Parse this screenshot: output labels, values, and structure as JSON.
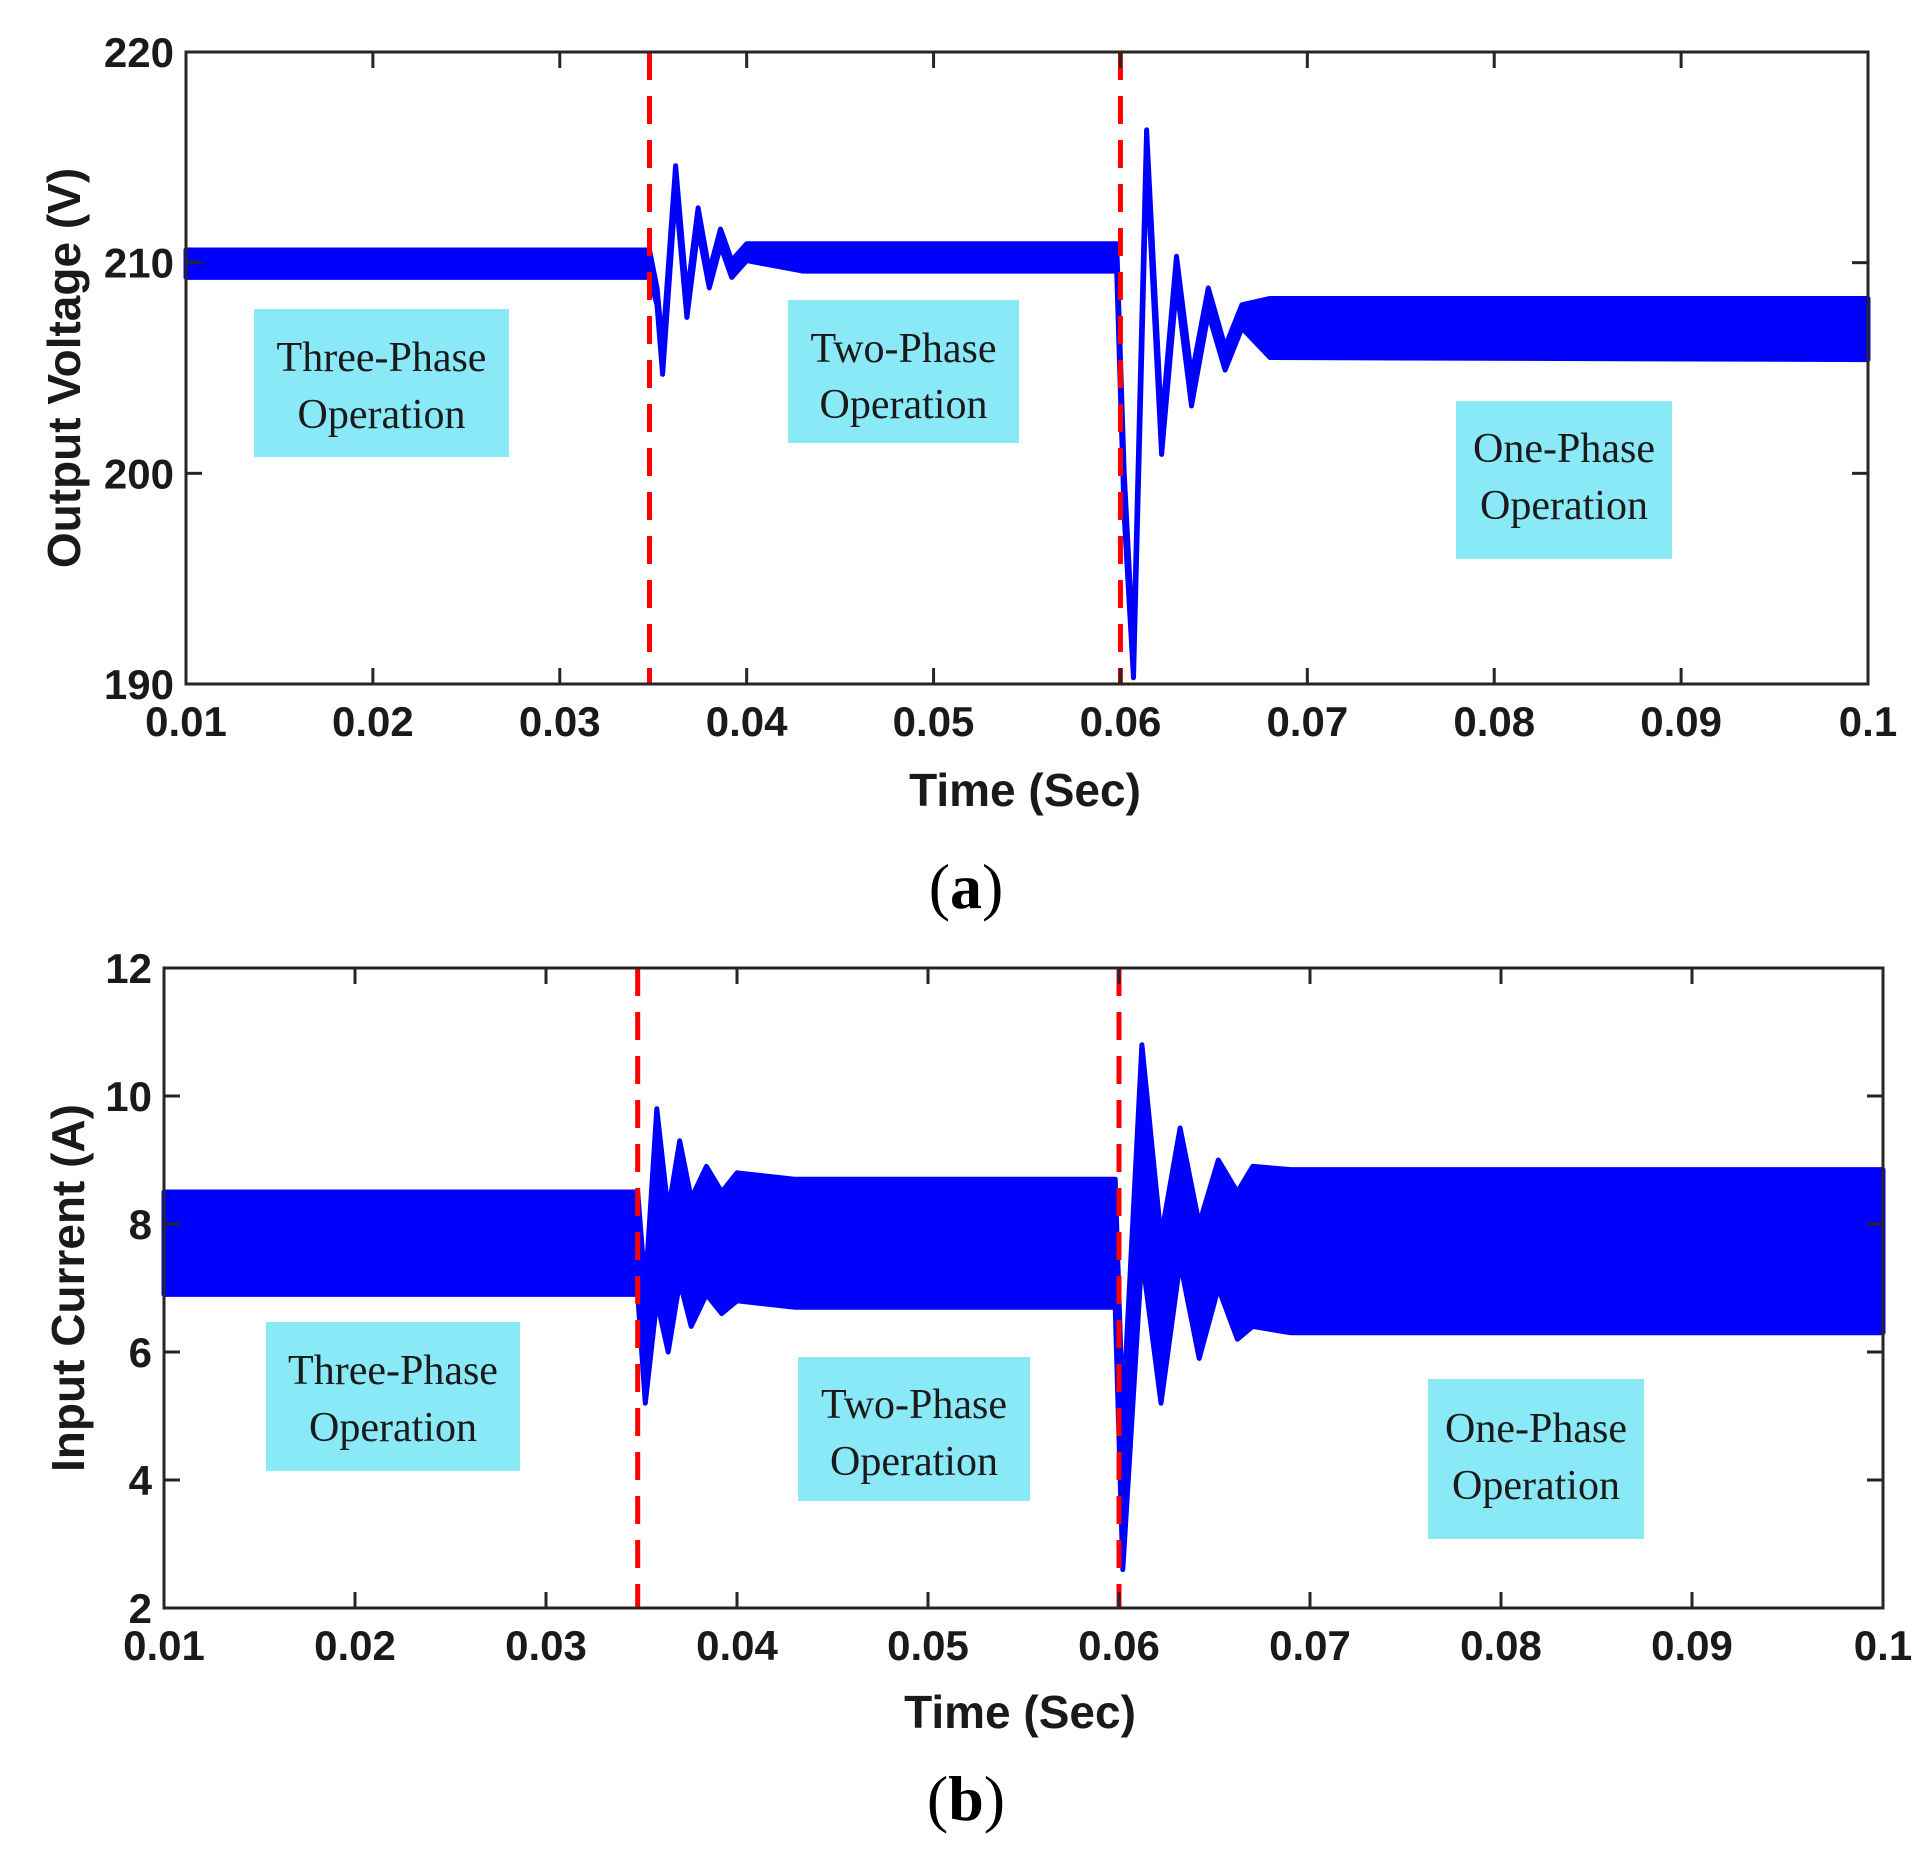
{
  "chart_data": [
    {
      "type": "line",
      "caption": "a",
      "xlabel": "Time (Sec)",
      "ylabel": "Output Voltage (V)",
      "xlim": [
        0.01,
        0.1
      ],
      "ylim": [
        190,
        220
      ],
      "xticks": [
        0.01,
        0.02,
        0.03,
        0.04,
        0.05,
        0.06,
        0.07,
        0.08,
        0.09,
        0.1
      ],
      "xtick_labels": [
        "0.01",
        "0.02",
        "0.03",
        "0.04",
        "0.05",
        "0.06",
        "0.07",
        "0.08",
        "0.09",
        "0.1"
      ],
      "yticks": [
        190,
        200,
        210,
        220
      ],
      "ytick_labels": [
        "190",
        "200",
        "210",
        "220"
      ],
      "grid": false,
      "series_color": "#0000ff",
      "divider_color": "#ff0000",
      "annotation_color": "#8ae9f7",
      "series": [
        {
          "name": "Output Voltage",
          "band": [
            {
              "x": 0.01,
              "low": 209.3,
              "high": 210.6
            },
            {
              "x": 0.0348,
              "low": 209.3,
              "high": 210.6
            },
            {
              "x": 0.0352,
              "low": 208.0,
              "high": 208.8
            },
            {
              "x": 0.0355,
              "low": 204.7,
              "high": 206.0
            },
            {
              "x": 0.0362,
              "low": 213.4,
              "high": 214.6
            },
            {
              "x": 0.0368,
              "low": 207.4,
              "high": 208.4
            },
            {
              "x": 0.0374,
              "low": 211.6,
              "high": 212.6
            },
            {
              "x": 0.038,
              "low": 208.8,
              "high": 209.6
            },
            {
              "x": 0.0386,
              "low": 210.8,
              "high": 211.6
            },
            {
              "x": 0.0392,
              "low": 209.3,
              "high": 210.1
            },
            {
              "x": 0.04,
              "low": 210.1,
              "high": 210.9
            },
            {
              "x": 0.043,
              "low": 209.6,
              "high": 210.9
            },
            {
              "x": 0.0598,
              "low": 209.6,
              "high": 210.9
            },
            {
              "x": 0.0602,
              "low": 198.0,
              "high": 200.0
            },
            {
              "x": 0.0607,
              "low": 190.3,
              "high": 191.5
            },
            {
              "x": 0.0614,
              "low": 214.8,
              "high": 216.3
            },
            {
              "x": 0.0622,
              "low": 200.9,
              "high": 202.3
            },
            {
              "x": 0.063,
              "low": 208.9,
              "high": 210.3
            },
            {
              "x": 0.0638,
              "low": 203.2,
              "high": 204.6
            },
            {
              "x": 0.0647,
              "low": 207.6,
              "high": 208.8
            },
            {
              "x": 0.0656,
              "low": 204.9,
              "high": 206.0
            },
            {
              "x": 0.0665,
              "low": 206.9,
              "high": 208.0
            },
            {
              "x": 0.068,
              "low": 205.5,
              "high": 208.3
            },
            {
              "x": 0.1,
              "low": 205.4,
              "high": 208.3
            }
          ]
        }
      ],
      "dividers": [
        0.0348,
        0.06
      ],
      "annotations": [
        {
          "lines": [
            "Three-Phase",
            "Operation"
          ]
        },
        {
          "lines": [
            "Two-Phase",
            "Operation"
          ]
        },
        {
          "lines": [
            "One-Phase",
            "Operation"
          ]
        }
      ]
    },
    {
      "type": "line",
      "caption": "b",
      "xlabel": "Time (Sec)",
      "ylabel": "Input Current (A)",
      "xlim": [
        0.01,
        0.1
      ],
      "ylim": [
        2,
        12
      ],
      "xticks": [
        0.01,
        0.02,
        0.03,
        0.04,
        0.05,
        0.06,
        0.07,
        0.08,
        0.09,
        0.1
      ],
      "xtick_labels": [
        "0.01",
        "0.02",
        "0.03",
        "0.04",
        "0.05",
        "0.06",
        "0.07",
        "0.08",
        "0.09",
        "0.1"
      ],
      "yticks": [
        2,
        4,
        6,
        8,
        10,
        12
      ],
      "ytick_labels": [
        "2",
        "4",
        "6",
        "8",
        "10",
        "12"
      ],
      "grid": false,
      "series_color": "#0000ff",
      "divider_color": "#ff0000",
      "annotation_color": "#8ae9f7",
      "series": [
        {
          "name": "Input Current",
          "band": [
            {
              "x": 0.01,
              "low": 6.9,
              "high": 8.5
            },
            {
              "x": 0.0348,
              "low": 6.9,
              "high": 8.5
            },
            {
              "x": 0.0352,
              "low": 5.2,
              "high": 7.0
            },
            {
              "x": 0.0358,
              "low": 6.8,
              "high": 9.8
            },
            {
              "x": 0.0364,
              "low": 6.0,
              "high": 8.2
            },
            {
              "x": 0.037,
              "low": 7.1,
              "high": 9.3
            },
            {
              "x": 0.0376,
              "low": 6.4,
              "high": 8.4
            },
            {
              "x": 0.0384,
              "low": 6.9,
              "high": 8.9
            },
            {
              "x": 0.0392,
              "low": 6.6,
              "high": 8.5
            },
            {
              "x": 0.04,
              "low": 6.8,
              "high": 8.8
            },
            {
              "x": 0.043,
              "low": 6.7,
              "high": 8.7
            },
            {
              "x": 0.0598,
              "low": 6.7,
              "high": 8.7
            },
            {
              "x": 0.0602,
              "low": 2.6,
              "high": 5.0
            },
            {
              "x": 0.0612,
              "low": 7.5,
              "high": 10.8
            },
            {
              "x": 0.0622,
              "low": 5.2,
              "high": 7.8
            },
            {
              "x": 0.0632,
              "low": 7.4,
              "high": 9.5
            },
            {
              "x": 0.0642,
              "low": 5.9,
              "high": 8.0
            },
            {
              "x": 0.0652,
              "low": 7.0,
              "high": 9.0
            },
            {
              "x": 0.0662,
              "low": 6.2,
              "high": 8.5
            },
            {
              "x": 0.067,
              "low": 6.4,
              "high": 8.9
            },
            {
              "x": 0.069,
              "low": 6.3,
              "high": 8.85
            },
            {
              "x": 0.1,
              "low": 6.3,
              "high": 8.85
            }
          ]
        }
      ],
      "dividers": [
        0.0348,
        0.06
      ],
      "annotations": [
        {
          "lines": [
            "Three-Phase",
            "Operation"
          ]
        },
        {
          "lines": [
            "Two-Phase",
            "Operation"
          ]
        },
        {
          "lines": [
            "One-Phase",
            "Operation"
          ]
        }
      ]
    }
  ]
}
